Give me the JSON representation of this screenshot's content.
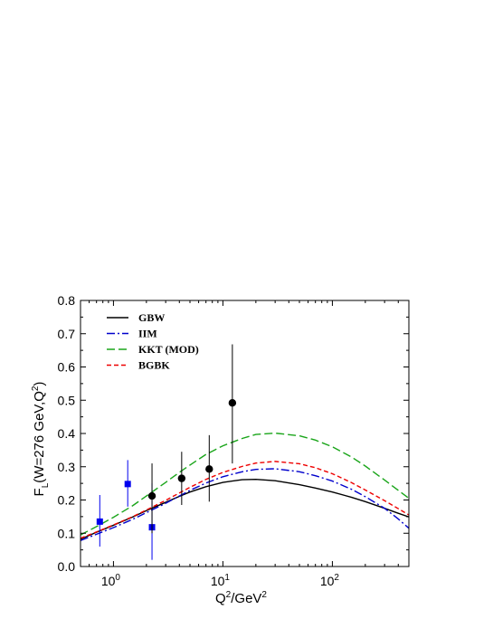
{
  "chart_data": {
    "type": "line",
    "ylabel": "F_L(W=276 GeV,Q^2)",
    "xlabel": "Q^2/GeV^2",
    "x_scale": "log",
    "xlim": [
      0.5,
      500
    ],
    "ylim": [
      0,
      0.8
    ],
    "y_ticks": [
      "0.0",
      "0.1",
      "0.2",
      "0.3",
      "0.4",
      "0.5",
      "0.6",
      "0.7",
      "0.8"
    ],
    "x_ticks": [
      {
        "value": 1,
        "base": "10",
        "exp": "0"
      },
      {
        "value": 10,
        "base": "10",
        "exp": "1"
      },
      {
        "value": 100,
        "base": "10",
        "exp": "2"
      }
    ],
    "legend_position": "top-left",
    "series": [
      {
        "name": "GBW",
        "color": "#000000",
        "dash": "solid",
        "points": [
          [
            0.5,
            0.082
          ],
          [
            0.7,
            0.103
          ],
          [
            1,
            0.124
          ],
          [
            1.5,
            0.149
          ],
          [
            2,
            0.168
          ],
          [
            3,
            0.193
          ],
          [
            4,
            0.211
          ],
          [
            5,
            0.224
          ],
          [
            7,
            0.24
          ],
          [
            10,
            0.253
          ],
          [
            15,
            0.261
          ],
          [
            20,
            0.262
          ],
          [
            30,
            0.258
          ],
          [
            50,
            0.246
          ],
          [
            70,
            0.236
          ],
          [
            100,
            0.224
          ],
          [
            150,
            0.208
          ],
          [
            200,
            0.195
          ],
          [
            300,
            0.175
          ],
          [
            400,
            0.16
          ],
          [
            500,
            0.149
          ]
        ]
      },
      {
        "name": "IIM",
        "color": "#0000cc",
        "dash": "dashdot",
        "points": [
          [
            0.5,
            0.078
          ],
          [
            0.7,
            0.097
          ],
          [
            1,
            0.117
          ],
          [
            1.5,
            0.142
          ],
          [
            2,
            0.162
          ],
          [
            3,
            0.19
          ],
          [
            4,
            0.212
          ],
          [
            5,
            0.229
          ],
          [
            7,
            0.251
          ],
          [
            10,
            0.27
          ],
          [
            15,
            0.285
          ],
          [
            20,
            0.292
          ],
          [
            30,
            0.294
          ],
          [
            50,
            0.285
          ],
          [
            70,
            0.273
          ],
          [
            100,
            0.257
          ],
          [
            150,
            0.232
          ],
          [
            200,
            0.21
          ],
          [
            300,
            0.175
          ],
          [
            400,
            0.143
          ],
          [
            500,
            0.115
          ]
        ]
      },
      {
        "name": "KKT (MOD)",
        "color": "#1aa51a",
        "dash": "longdash",
        "points": [
          [
            0.5,
            0.095
          ],
          [
            0.7,
            0.12
          ],
          [
            1,
            0.148
          ],
          [
            1.5,
            0.183
          ],
          [
            2,
            0.212
          ],
          [
            3,
            0.253
          ],
          [
            4,
            0.283
          ],
          [
            5,
            0.305
          ],
          [
            7,
            0.337
          ],
          [
            10,
            0.363
          ],
          [
            15,
            0.385
          ],
          [
            20,
            0.397
          ],
          [
            30,
            0.401
          ],
          [
            50,
            0.393
          ],
          [
            70,
            0.38
          ],
          [
            100,
            0.36
          ],
          [
            150,
            0.329
          ],
          [
            200,
            0.302
          ],
          [
            300,
            0.26
          ],
          [
            400,
            0.229
          ],
          [
            500,
            0.205
          ]
        ]
      },
      {
        "name": "BGBK",
        "color": "#ee0000",
        "dash": "shortdash",
        "points": [
          [
            0.5,
            0.085
          ],
          [
            0.7,
            0.104
          ],
          [
            1,
            0.125
          ],
          [
            1.5,
            0.15
          ],
          [
            2,
            0.17
          ],
          [
            3,
            0.199
          ],
          [
            4,
            0.221
          ],
          [
            5,
            0.238
          ],
          [
            7,
            0.262
          ],
          [
            10,
            0.283
          ],
          [
            15,
            0.301
          ],
          [
            20,
            0.311
          ],
          [
            30,
            0.316
          ],
          [
            50,
            0.309
          ],
          [
            70,
            0.297
          ],
          [
            100,
            0.279
          ],
          [
            150,
            0.252
          ],
          [
            200,
            0.23
          ],
          [
            300,
            0.198
          ],
          [
            400,
            0.174
          ],
          [
            500,
            0.155
          ]
        ]
      }
    ],
    "data_points": [
      {
        "marker": "square",
        "color": "#0000ee",
        "x": 0.75,
        "y": 0.135,
        "ylo": 0.06,
        "yhi": 0.215
      },
      {
        "marker": "square",
        "color": "#0000ee",
        "x": 1.35,
        "y": 0.248,
        "ylo": 0.18,
        "yhi": 0.32
      },
      {
        "marker": "square",
        "color": "#0000ee",
        "x": 2.25,
        "y": 0.118,
        "ylo": 0.02,
        "yhi": 0.25
      },
      {
        "marker": "circle",
        "color": "#000000",
        "x": 2.25,
        "y": 0.212,
        "ylo": 0.1,
        "yhi": 0.31
      },
      {
        "marker": "circle",
        "color": "#000000",
        "x": 4.2,
        "y": 0.265,
        "ylo": 0.185,
        "yhi": 0.345
      },
      {
        "marker": "circle",
        "color": "#000000",
        "x": 7.5,
        "y": 0.293,
        "ylo": 0.195,
        "yhi": 0.395
      },
      {
        "marker": "circle",
        "color": "#000000",
        "x": 12.2,
        "y": 0.492,
        "ylo": 0.31,
        "yhi": 0.668
      }
    ]
  }
}
